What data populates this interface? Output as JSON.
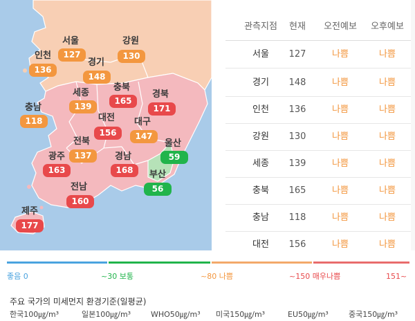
{
  "map": {
    "regions": [
      {
        "id": "seoul",
        "name": "서울",
        "value": "127",
        "level": "bad"
      },
      {
        "id": "gangwon",
        "name": "강원",
        "value": "130",
        "level": "bad"
      },
      {
        "id": "incheon",
        "name": "인천",
        "value": "136",
        "level": "bad"
      },
      {
        "id": "gyeonggi",
        "name": "경기",
        "value": "148",
        "level": "bad"
      },
      {
        "id": "sejong",
        "name": "세종",
        "value": "139",
        "level": "bad"
      },
      {
        "id": "chungbuk",
        "name": "충북",
        "value": "165",
        "level": "very-bad"
      },
      {
        "id": "gyeongbuk",
        "name": "경북",
        "value": "171",
        "level": "very-bad"
      },
      {
        "id": "chungnam",
        "name": "충남",
        "value": "118",
        "level": "bad"
      },
      {
        "id": "daejeon",
        "name": "대전",
        "value": "156",
        "level": "very-bad"
      },
      {
        "id": "daegu",
        "name": "대구",
        "value": "147",
        "level": "bad"
      },
      {
        "id": "jeonbuk",
        "name": "전북",
        "value": "137",
        "level": "bad"
      },
      {
        "id": "ulsan",
        "name": "울산",
        "value": "59",
        "level": "normal"
      },
      {
        "id": "gwangju",
        "name": "광주",
        "value": "163",
        "level": "very-bad"
      },
      {
        "id": "gyeongnam",
        "name": "경남",
        "value": "168",
        "level": "very-bad"
      },
      {
        "id": "busan",
        "name": "부산",
        "value": "56",
        "level": "normal"
      },
      {
        "id": "jeonnam",
        "name": "전남",
        "value": "160",
        "level": "very-bad"
      },
      {
        "id": "jeju",
        "name": "제주",
        "value": "177",
        "level": "very-bad"
      }
    ],
    "colors": {
      "bad": "#f3973f",
      "very_bad": "#e8494b",
      "normal": "#21b44b",
      "sea": "#a9cbe9"
    }
  },
  "table": {
    "headers": [
      "관측지점",
      "현재",
      "오전예보",
      "오후예보"
    ],
    "rows": [
      {
        "name": "서울",
        "current": "127",
        "am": "나쁨",
        "pm": "나쁨"
      },
      {
        "name": "경기",
        "current": "148",
        "am": "나쁨",
        "pm": "나쁨"
      },
      {
        "name": "인천",
        "current": "136",
        "am": "나쁨",
        "pm": "나쁨"
      },
      {
        "name": "강원",
        "current": "130",
        "am": "나쁨",
        "pm": "나쁨"
      },
      {
        "name": "세종",
        "current": "139",
        "am": "나쁨",
        "pm": "나쁨"
      },
      {
        "name": "충북",
        "current": "165",
        "am": "나쁨",
        "pm": "나쁨"
      },
      {
        "name": "충남",
        "current": "118",
        "am": "나쁨",
        "pm": "나쁨"
      },
      {
        "name": "대전",
        "current": "156",
        "am": "나쁨",
        "pm": "나쁨"
      }
    ]
  },
  "scale": {
    "good_label": "좋음 0",
    "normal_label": "~30 보통",
    "bad_label": "~80 나쁨",
    "very_bad_label": "~150 매우나쁨",
    "end_label": "151~",
    "colors": {
      "good": "#4aa3df",
      "normal": "#21b44b",
      "bad": "#f3a96a",
      "very_bad": "#e86c6c"
    }
  },
  "standards": {
    "title": "주요 국가의 미세먼지 환경기준(일평균)",
    "items": [
      "한국100㎍/m³",
      "일본100㎍/m³",
      "WHO50㎍/m³",
      "미국150㎍/m³",
      "EU50㎍/m³",
      "중국150㎍/m³"
    ]
  }
}
